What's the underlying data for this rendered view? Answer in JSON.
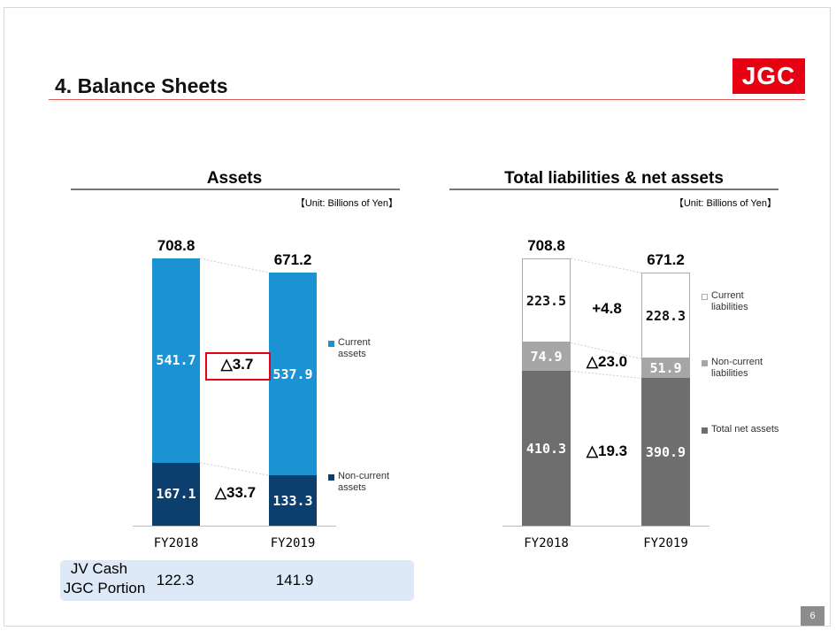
{
  "header": {
    "title": "4. Balance Sheets",
    "logo": "JGC"
  },
  "chart_data": [
    {
      "type": "stacked_bar",
      "title": "Assets",
      "subtitle": "【Unit: Billions of Yen】",
      "categories": [
        "FY2018",
        "FY2019"
      ],
      "series": [
        {
          "name": "Non-current assets",
          "color": "#0d3f6e",
          "values": [
            167.1,
            133.3
          ]
        },
        {
          "name": "Current assets",
          "color": "#1b92d2",
          "values": [
            541.7,
            537.9
          ]
        }
      ],
      "totals": [
        708.8,
        671.2
      ],
      "annotations": [
        "△3.7",
        "△33.7"
      ]
    },
    {
      "type": "stacked_bar",
      "title": "Total liabilities & net assets",
      "subtitle": "【Unit: Billions of Yen】",
      "categories": [
        "FY2018",
        "FY2019"
      ],
      "series": [
        {
          "name": "Total net assets",
          "color": "#6e6e6e",
          "values": [
            410.3,
            390.9
          ]
        },
        {
          "name": "Non-current liabilities",
          "color": "#a6a6a6",
          "values": [
            74.9,
            51.9
          ]
        },
        {
          "name": "Current liabilities",
          "color": "#ffffff",
          "values": [
            223.5,
            228.3
          ]
        }
      ],
      "totals": [
        708.8,
        671.2
      ],
      "annotations": [
        "+4.8",
        "△23.0",
        "△19.3"
      ]
    }
  ],
  "jv_cash": {
    "label": [
      "JV Cash",
      "JGC Portion"
    ],
    "values": [
      122.3,
      141.9
    ]
  },
  "page_number": "6"
}
